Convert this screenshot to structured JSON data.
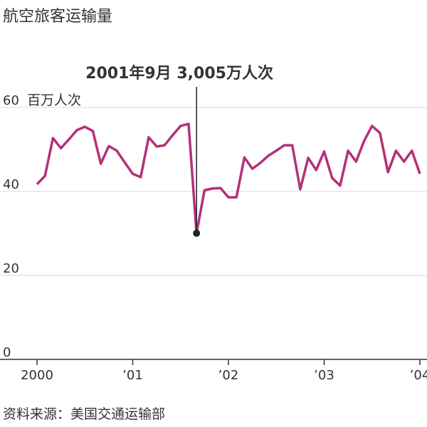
{
  "chart_data": {
    "type": "line",
    "title": "航空旅客运输量",
    "y_label": "百万人次",
    "annotation": "2001年9月 3,005万人次",
    "source": "资料来源：美国交通运输部",
    "categories": [
      "2000",
      null,
      null,
      null,
      null,
      null,
      null,
      null,
      null,
      null,
      null,
      null,
      "’01",
      null,
      null,
      null,
      null,
      null,
      null,
      null,
      null,
      null,
      null,
      null,
      "’02",
      null,
      null,
      null,
      null,
      null,
      null,
      null,
      null,
      null,
      null,
      null,
      "’03",
      null,
      null,
      null,
      null,
      null,
      null,
      null,
      null,
      null,
      null,
      null,
      "’04"
    ],
    "series": [
      {
        "name": "航空旅客",
        "color": "#b5307a",
        "values": [
          41.7,
          43.7,
          52.7,
          50.3,
          52.4,
          54.6,
          55.4,
          54.4,
          46.6,
          50.8,
          49.7,
          46.9,
          44.2,
          43.4,
          52.9,
          50.7,
          51.0,
          53.4,
          55.6,
          56.1,
          30.05,
          40.3,
          40.7,
          40.8,
          38.6,
          38.6,
          48.1,
          45.4,
          46.8,
          48.5,
          49.7,
          51.0,
          51.0,
          40.5,
          48.0,
          45.1,
          49.5,
          43.2,
          41.4,
          49.7,
          47.1,
          52.0,
          55.6,
          53.9,
          44.6,
          49.7,
          47.1,
          49.7,
          44.2
        ]
      }
    ],
    "ylim": [
      0,
      60
    ],
    "yticks": [
      0,
      20,
      40,
      60
    ],
    "grid": true
  }
}
